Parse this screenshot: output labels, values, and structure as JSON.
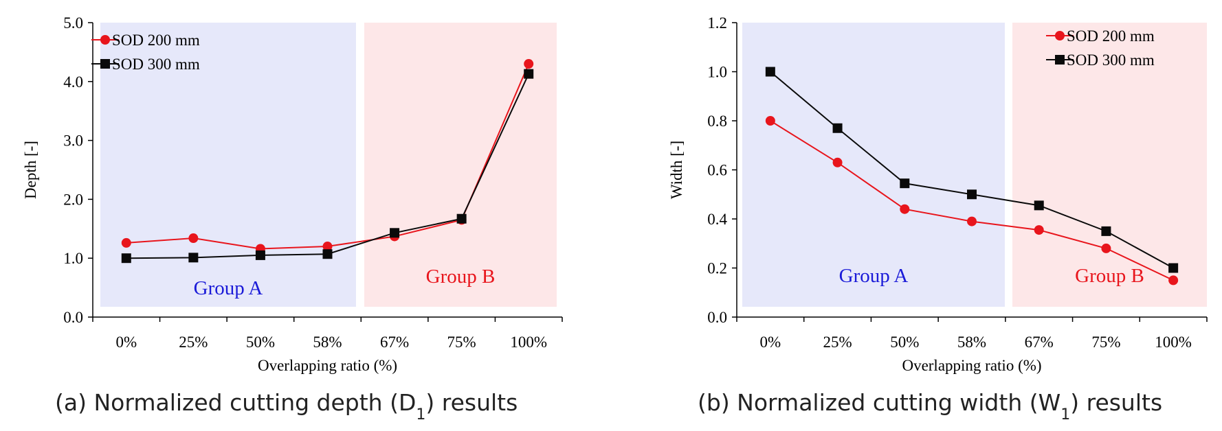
{
  "colors": {
    "series_sod200": "#e8151c",
    "series_sod300": "#0a0a0a",
    "group_a_band": "#e6e8fa",
    "group_b_band": "#fde7e8",
    "group_a_text": "#1b1bd8",
    "group_b_text": "#e8151c",
    "axis": "#000000"
  },
  "chart_data": [
    {
      "id": "a",
      "type": "line",
      "caption_prefix": "(a) Normalized cutting depth (D",
      "caption_sub": "1",
      "caption_suffix": ") results",
      "xlabel": "Overlapping ratio (%)",
      "ylabel": "Depth [-]",
      "categories": [
        "0%",
        "25%",
        "50%",
        "58%",
        "67%",
        "75%",
        "100%"
      ],
      "ylim": [
        0,
        5
      ],
      "yticks": [
        0,
        1,
        2,
        3,
        4,
        5
      ],
      "ytick_labels": [
        "0.0",
        "1.0",
        "2.0",
        "3.0",
        "4.0",
        "5.0"
      ],
      "grid": false,
      "legend_position": "top-left",
      "groups": [
        {
          "label": "Group A",
          "from_index": 0,
          "to_index": 3,
          "label_value": 0.5
        },
        {
          "label": "Group B",
          "from_index": 4,
          "to_index": 6,
          "label_value": 0.7
        }
      ],
      "series": [
        {
          "name": "SOD 200 mm",
          "marker": "circle",
          "values": [
            1.26,
            1.34,
            1.16,
            1.2,
            1.37,
            1.65,
            4.3
          ]
        },
        {
          "name": "SOD 300 mm",
          "marker": "square",
          "values": [
            1.0,
            1.01,
            1.05,
            1.07,
            1.43,
            1.67,
            4.13
          ]
        }
      ]
    },
    {
      "id": "b",
      "type": "line",
      "caption_prefix": "(b) Normalized cutting width (W",
      "caption_sub": "1",
      "caption_suffix": ") results",
      "xlabel": "Overlapping ratio (%)",
      "ylabel": "Width [-]",
      "categories": [
        "0%",
        "25%",
        "50%",
        "58%",
        "67%",
        "75%",
        "100%"
      ],
      "ylim": [
        0,
        1.2
      ],
      "yticks": [
        0,
        0.2,
        0.4,
        0.6,
        0.8,
        1.0,
        1.2
      ],
      "ytick_labels": [
        "0.0",
        "0.2",
        "0.4",
        "0.6",
        "0.8",
        "1.0",
        "1.2"
      ],
      "grid": false,
      "legend_position": "top-right",
      "groups": [
        {
          "label": "Group A",
          "from_index": 0,
          "to_index": 3,
          "label_value": 0.17
        },
        {
          "label": "Group B",
          "from_index": 4,
          "to_index": 6,
          "label_value": 0.17
        }
      ],
      "series": [
        {
          "name": "SOD 200 mm",
          "marker": "circle",
          "values": [
            0.8,
            0.63,
            0.44,
            0.39,
            0.355,
            0.28,
            0.15
          ]
        },
        {
          "name": "SOD 300 mm",
          "marker": "square",
          "values": [
            1.0,
            0.77,
            0.545,
            0.5,
            0.455,
            0.35,
            0.2
          ]
        }
      ]
    }
  ]
}
